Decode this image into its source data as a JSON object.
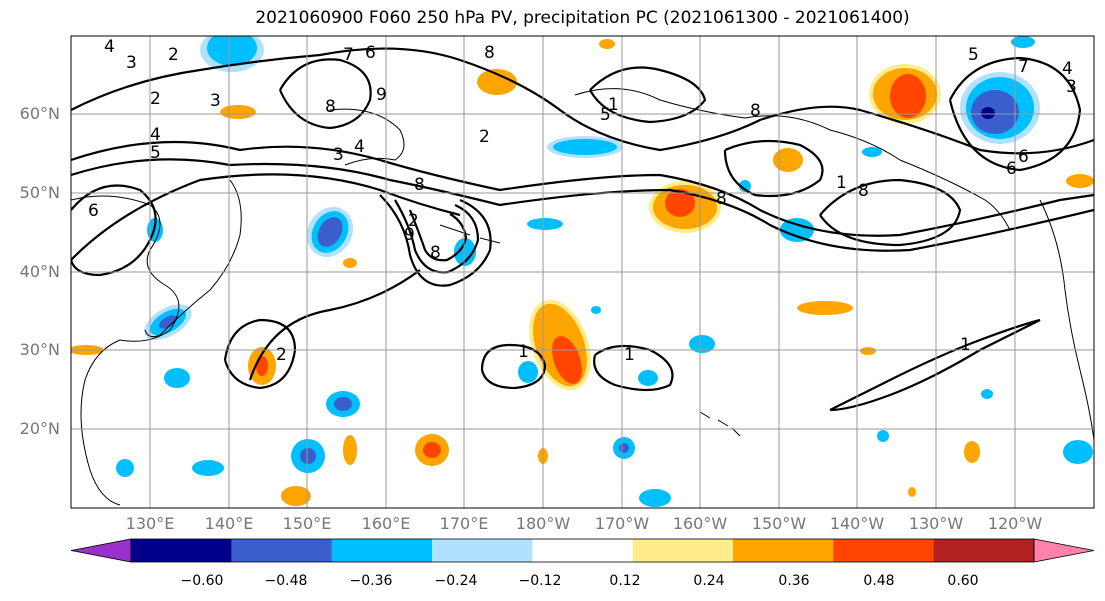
{
  "title": "2021060900 F060 250 hPa PV, precipitation PC (2021061300 - 2021061400)",
  "lat_labels": [
    "60°N",
    "50°N",
    "40°N",
    "30°N",
    "20°N"
  ],
  "lon_labels": [
    "130°E",
    "140°E",
    "150°E",
    "160°E",
    "170°E",
    "180°W",
    "170°W",
    "160°W",
    "150°W",
    "140°W",
    "130°W",
    "120°W"
  ],
  "colorbar": {
    "ticks": [
      "−0.60",
      "−0.48",
      "−0.36",
      "−0.24",
      "−0.12",
      "0.12",
      "0.24",
      "0.36",
      "0.48",
      "0.60"
    ],
    "colors": [
      "#9932cc",
      "#00008b",
      "#3a5fcd",
      "#00bfff",
      "#b0e2ff",
      "#ffffff",
      "#ffec8b",
      "#ffa500",
      "#ff4500",
      "#b22222",
      "#ff82ab"
    ]
  },
  "contour_labels": [
    "4",
    "3",
    "2",
    "2",
    "3",
    "6",
    "7",
    "8",
    "8",
    "9",
    "5",
    "1",
    "2",
    "3",
    "4",
    "5",
    "4",
    "6",
    "8",
    "2",
    "9",
    "8",
    "2",
    "1",
    "1",
    "1",
    "8",
    "8",
    "6",
    "5",
    "7",
    "3",
    "4",
    "6",
    "8",
    "1"
  ],
  "colors": {
    "grid": "#999999",
    "contour": "#000000",
    "neg_strong": "#3a5fcd",
    "neg_mid": "#00bfff",
    "neg_weak": "#b0e2ff",
    "pos_weak": "#ffec8b",
    "pos_mid": "#ffa500",
    "pos_strong": "#ff4500"
  }
}
